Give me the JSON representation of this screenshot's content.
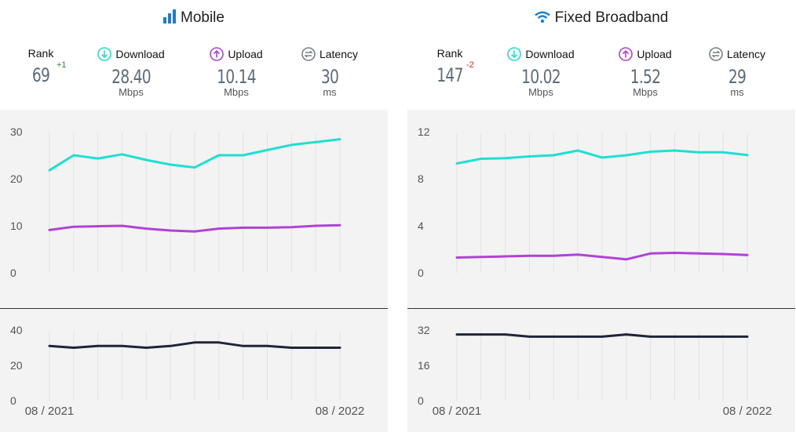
{
  "panels": [
    {
      "id": "mobile",
      "title": "Mobile",
      "icon": "signal-bars-icon",
      "rank_label": "Rank",
      "rank": "69",
      "rank_change": "+1",
      "rank_change_color": "#2e8b2e",
      "download_label": "Download",
      "download": "28.40",
      "download_unit": "Mbps",
      "upload_label": "Upload",
      "upload": "10.14",
      "upload_unit": "Mbps",
      "latency_label": "Latency",
      "latency": "30",
      "latency_unit": "ms"
    },
    {
      "id": "fixed",
      "title": "Fixed Broadband",
      "icon": "wifi-icon",
      "rank_label": "Rank",
      "rank": "147",
      "rank_change": "-2",
      "rank_change_color": "#e0262b",
      "download_label": "Download",
      "download": "10.02",
      "download_unit": "Mbps",
      "upload_label": "Upload",
      "upload": "1.52",
      "upload_unit": "Mbps",
      "latency_label": "Latency",
      "latency": "29",
      "latency_unit": "ms"
    }
  ],
  "colors": {
    "download": "#1fe0d0",
    "upload": "#b142d6",
    "latency": "#1f2438",
    "accent": "#1b7fd1"
  },
  "chart_data": [
    {
      "type": "line",
      "panel": "mobile",
      "chart": "speed",
      "x": [
        "08 / 2021",
        "09 / 2021",
        "10 / 2021",
        "11 / 2021",
        "12 / 2021",
        "01 / 2022",
        "02 / 2022",
        "03 / 2022",
        "04 / 2022",
        "05 / 2022",
        "06 / 2022",
        "07 / 2022",
        "08 / 2022"
      ],
      "xticks": [
        "08 / 2021",
        "08 / 2022"
      ],
      "yticks": [
        0,
        10,
        20,
        30
      ],
      "ylim": [
        0,
        30
      ],
      "grid": true,
      "series": [
        {
          "name": "Download",
          "values": [
            21.8,
            25.0,
            24.3,
            25.2,
            24.0,
            23.0,
            22.4,
            25.0,
            25.0,
            26.1,
            27.2,
            27.8,
            28.4
          ]
        },
        {
          "name": "Upload",
          "values": [
            9.1,
            9.8,
            9.9,
            10.0,
            9.4,
            9.0,
            8.8,
            9.4,
            9.6,
            9.6,
            9.7,
            10.0,
            10.14
          ]
        }
      ]
    },
    {
      "type": "line",
      "panel": "mobile",
      "chart": "latency",
      "x": [
        "08 / 2021",
        "09 / 2021",
        "10 / 2021",
        "11 / 2021",
        "12 / 2021",
        "01 / 2022",
        "02 / 2022",
        "03 / 2022",
        "04 / 2022",
        "05 / 2022",
        "06 / 2022",
        "07 / 2022",
        "08 / 2022"
      ],
      "xticks": [
        "08 / 2021",
        "08 / 2022"
      ],
      "yticks": [
        0,
        20,
        40
      ],
      "ylim": [
        0,
        40
      ],
      "grid": true,
      "series": [
        {
          "name": "Latency",
          "values": [
            31,
            30,
            31,
            31,
            30,
            31,
            33,
            33,
            31,
            31,
            30,
            30,
            30
          ]
        }
      ]
    },
    {
      "type": "line",
      "panel": "fixed",
      "chart": "speed",
      "x": [
        "08 / 2021",
        "09 / 2021",
        "10 / 2021",
        "11 / 2021",
        "12 / 2021",
        "01 / 2022",
        "02 / 2022",
        "03 / 2022",
        "04 / 2022",
        "05 / 2022",
        "06 / 2022",
        "07 / 2022",
        "08 / 2022"
      ],
      "xticks": [
        "08 / 2021",
        "08 / 2022"
      ],
      "yticks": [
        0,
        4,
        8,
        12
      ],
      "ylim": [
        0,
        12
      ],
      "grid": true,
      "series": [
        {
          "name": "Download",
          "values": [
            9.3,
            9.7,
            9.75,
            9.9,
            10.0,
            10.4,
            9.8,
            10.0,
            10.3,
            10.4,
            10.25,
            10.25,
            10.02
          ]
        },
        {
          "name": "Upload",
          "values": [
            1.3,
            1.35,
            1.4,
            1.45,
            1.45,
            1.55,
            1.35,
            1.15,
            1.65,
            1.7,
            1.65,
            1.6,
            1.52
          ]
        }
      ]
    },
    {
      "type": "line",
      "panel": "fixed",
      "chart": "latency",
      "x": [
        "08 / 2021",
        "09 / 2021",
        "10 / 2021",
        "11 / 2021",
        "12 / 2021",
        "01 / 2022",
        "02 / 2022",
        "03 / 2022",
        "04 / 2022",
        "05 / 2022",
        "06 / 2022",
        "07 / 2022",
        "08 / 2022"
      ],
      "xticks": [
        "08 / 2021",
        "08 / 2022"
      ],
      "yticks": [
        0,
        16,
        32
      ],
      "ylim": [
        0,
        32
      ],
      "grid": true,
      "series": [
        {
          "name": "Latency",
          "values": [
            30,
            30,
            30,
            29,
            29,
            29,
            29,
            30,
            29,
            29,
            29,
            29,
            29
          ]
        }
      ]
    }
  ]
}
